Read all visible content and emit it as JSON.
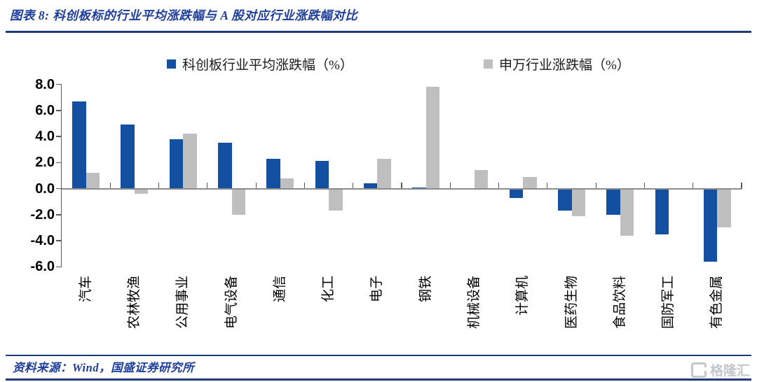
{
  "header": {
    "title": "图表 8:  科创板标的行业平均涨跌幅与 A 股对应行业涨跌幅对比"
  },
  "chart_data": {
    "type": "bar",
    "categories": [
      "汽车",
      "农林牧渔",
      "公用事业",
      "电气设备",
      "通信",
      "化工",
      "电子",
      "钢铁",
      "机械设备",
      "计算机",
      "医药生物",
      "食品饮料",
      "国防军工",
      "有色金属"
    ],
    "series": [
      {
        "name": "科创板行业平均涨跌幅（%）",
        "color": "#1450a2",
        "values": [
          6.7,
          4.9,
          3.8,
          3.5,
          2.3,
          2.1,
          0.4,
          0.1,
          -0.1,
          -0.7,
          -1.7,
          -2.0,
          -3.5,
          -5.6
        ]
      },
      {
        "name": "申万行业涨跌幅（%）",
        "color": "#bfbfbf",
        "values": [
          1.2,
          -0.4,
          4.2,
          -2.0,
          0.8,
          -1.7,
          2.3,
          7.8,
          1.4,
          0.9,
          -2.1,
          -3.6,
          -0.1,
          -3.0
        ]
      }
    ],
    "title": "",
    "xlabel": "",
    "ylabel": "",
    "ylim": [
      -6,
      8
    ],
    "yticks": [
      8,
      6,
      4,
      2,
      0,
      -2,
      -4,
      -6
    ],
    "ytick_labels": [
      "8.0",
      "6.0",
      "4.0",
      "2.0",
      "0.0",
      "-2.0",
      "-4.0",
      "-6.0"
    ],
    "grid": false,
    "legend_position": "top"
  },
  "footer": {
    "source": "资料来源：Wind，国盛证券研究所",
    "watermark": "格隆汇"
  }
}
